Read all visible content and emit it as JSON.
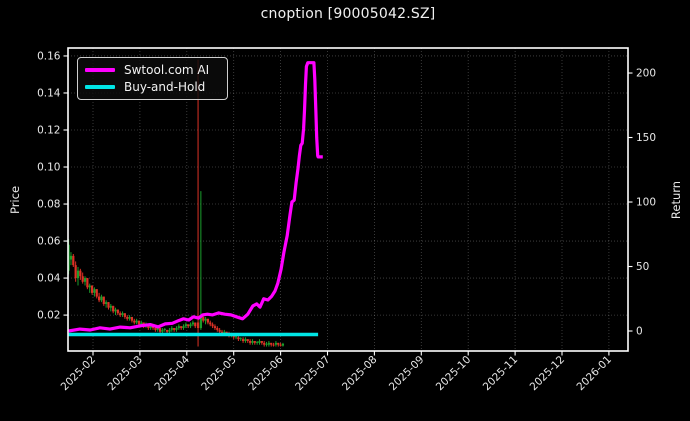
{
  "window": {
    "title": "cnoption [90005042.SZ]"
  },
  "legend": {
    "items": [
      {
        "label": "Swtool.com AI",
        "color": "#ff00ff"
      },
      {
        "label": "Buy-and-Hold",
        "color": "#00e5e5"
      }
    ]
  },
  "axes": {
    "left_label": "Price",
    "right_label": "Return"
  },
  "colors": {
    "background": "#000000",
    "text": "#e8e8e8",
    "spine": "#ffffff",
    "grid": "#ffffff",
    "candle_up": "#1a9e2c",
    "candle_down": "#dd3226",
    "strategy": "#ff00ff",
    "buy_hold": "#00e5e5"
  },
  "chart_data": {
    "type": "candlestick+line",
    "title": "cnoption [90005042.SZ]",
    "x_axis": {
      "unit": "months_since_2025-02",
      "ticks": [
        "2025-02",
        "2025-03",
        "2025-04",
        "2025-05",
        "2025-06",
        "2025-07",
        "2025-08",
        "2025-09",
        "2025-10",
        "2025-11",
        "2025-12",
        "2026-01"
      ]
    },
    "y_left": {
      "label": "Price",
      "range": [
        0.0006,
        0.1643
      ],
      "ticks": [
        0.02,
        0.04,
        0.06,
        0.08,
        0.1,
        0.12,
        0.14,
        0.16
      ]
    },
    "y_right": {
      "label": "Return",
      "range": [
        -15.5,
        219.4
      ],
      "ticks": [
        0,
        50,
        100,
        150,
        200
      ]
    },
    "grid": {
      "show": true,
      "style": "dotted"
    },
    "legend_position": "upper-left",
    "series": [
      {
        "name": "Swtool.com AI",
        "axis": "right",
        "color": "#ff00ff",
        "points": [
          [
            -0.52,
            0
          ],
          [
            -0.28,
            1.5
          ],
          [
            -0.06,
            0.8
          ],
          [
            0.15,
            2.5
          ],
          [
            0.36,
            1.5
          ],
          [
            0.58,
            3
          ],
          [
            0.79,
            2.5
          ],
          [
            1.01,
            4
          ],
          [
            1.22,
            5
          ],
          [
            1.39,
            3.2
          ],
          [
            1.54,
            5.5
          ],
          [
            1.69,
            6
          ],
          [
            1.82,
            8
          ],
          [
            1.93,
            9.5
          ],
          [
            2.04,
            8.5
          ],
          [
            2.14,
            11
          ],
          [
            2.25,
            10
          ],
          [
            2.34,
            12.5
          ],
          [
            2.44,
            13
          ],
          [
            2.55,
            12.5
          ],
          [
            2.68,
            14
          ],
          [
            2.81,
            13
          ],
          [
            2.94,
            12.5
          ],
          [
            3.06,
            11
          ],
          [
            3.19,
            9.5
          ],
          [
            3.3,
            13
          ],
          [
            3.41,
            19.5
          ],
          [
            3.49,
            21
          ],
          [
            3.56,
            18.5
          ],
          [
            3.64,
            25
          ],
          [
            3.73,
            24
          ],
          [
            3.81,
            27
          ],
          [
            3.88,
            31
          ],
          [
            3.94,
            37
          ],
          [
            4.01,
            48
          ],
          [
            4.07,
            61
          ],
          [
            4.14,
            74
          ],
          [
            4.2,
            90
          ],
          [
            4.24,
            100
          ],
          [
            4.29,
            101.5
          ],
          [
            4.33,
            115
          ],
          [
            4.37,
            126
          ],
          [
            4.4,
            136
          ],
          [
            4.43,
            144
          ],
          [
            4.46,
            145.5
          ],
          [
            4.49,
            157
          ],
          [
            4.51,
            171
          ],
          [
            4.53,
            191
          ],
          [
            4.55,
            205
          ],
          [
            4.58,
            208
          ],
          [
            4.71,
            208
          ],
          [
            4.73,
            195
          ],
          [
            4.75,
            172
          ],
          [
            4.77,
            150
          ],
          [
            4.79,
            136
          ],
          [
            4.8,
            135
          ],
          [
            4.9,
            135
          ]
        ]
      },
      {
        "name": "Buy-and-Hold",
        "axis": "right",
        "color": "#00e5e5",
        "points": [
          [
            -0.52,
            -2.7
          ],
          [
            4.8,
            -2.7
          ]
        ]
      }
    ],
    "candles": {
      "up_color": "#1a9e2c",
      "down_color": "#dd3226",
      "columns": [
        "month_offset",
        "open",
        "high",
        "low",
        "close"
      ],
      "ohlc": [
        [
          -0.52,
          0.044,
          0.061,
          0.042,
          0.058
        ],
        [
          -0.47,
          0.05,
          0.054,
          0.047,
          0.052
        ],
        [
          -0.42,
          0.052,
          0.053,
          0.046,
          0.047
        ],
        [
          -0.37,
          0.047,
          0.049,
          0.038,
          0.04
        ],
        [
          -0.32,
          0.04,
          0.046,
          0.036,
          0.044
        ],
        [
          -0.27,
          0.044,
          0.045,
          0.039,
          0.041
        ],
        [
          -0.22,
          0.041,
          0.043,
          0.037,
          0.038
        ],
        [
          -0.17,
          0.038,
          0.041,
          0.036,
          0.04
        ],
        [
          -0.12,
          0.04,
          0.04,
          0.034,
          0.035
        ],
        [
          -0.07,
          0.035,
          0.037,
          0.032,
          0.036
        ],
        [
          -0.02,
          0.036,
          0.036,
          0.031,
          0.032
        ],
        [
          0.03,
          0.032,
          0.035,
          0.03,
          0.034
        ],
        [
          0.08,
          0.034,
          0.034,
          0.029,
          0.03
        ],
        [
          0.13,
          0.03,
          0.032,
          0.027,
          0.028
        ],
        [
          0.18,
          0.028,
          0.031,
          0.027,
          0.03
        ],
        [
          0.23,
          0.03,
          0.03,
          0.025,
          0.026
        ],
        [
          0.28,
          0.026,
          0.028,
          0.024,
          0.027
        ],
        [
          0.33,
          0.027,
          0.027,
          0.023,
          0.024
        ],
        [
          0.38,
          0.024,
          0.026,
          0.022,
          0.025
        ],
        [
          0.43,
          0.025,
          0.025,
          0.021,
          0.022
        ],
        [
          0.48,
          0.022,
          0.024,
          0.02,
          0.023
        ],
        [
          0.53,
          0.023,
          0.023,
          0.02,
          0.021
        ],
        [
          0.58,
          0.021,
          0.022,
          0.019,
          0.02
        ],
        [
          0.63,
          0.02,
          0.022,
          0.019,
          0.021
        ],
        [
          0.68,
          0.021,
          0.021,
          0.018,
          0.019
        ],
        [
          0.73,
          0.019,
          0.02,
          0.017,
          0.018
        ],
        [
          0.78,
          0.018,
          0.02,
          0.017,
          0.019
        ],
        [
          0.83,
          0.019,
          0.019,
          0.016,
          0.017
        ],
        [
          0.88,
          0.017,
          0.018,
          0.015,
          0.016
        ],
        [
          0.93,
          0.016,
          0.018,
          0.015,
          0.017
        ],
        [
          0.98,
          0.017,
          0.017,
          0.014,
          0.015
        ],
        [
          1.03,
          0.015,
          0.017,
          0.014,
          0.016
        ],
        [
          1.08,
          0.016,
          0.016,
          0.013,
          0.014
        ],
        [
          1.13,
          0.014,
          0.016,
          0.013,
          0.015
        ],
        [
          1.18,
          0.015,
          0.015,
          0.012,
          0.013
        ],
        [
          1.23,
          0.013,
          0.015,
          0.012,
          0.014
        ],
        [
          1.28,
          0.014,
          0.014,
          0.012,
          0.013
        ],
        [
          1.33,
          0.013,
          0.014,
          0.011,
          0.012
        ],
        [
          1.38,
          0.012,
          0.014,
          0.011,
          0.013
        ],
        [
          1.43,
          0.013,
          0.013,
          0.01,
          0.011
        ],
        [
          1.48,
          0.011,
          0.013,
          0.01,
          0.012
        ],
        [
          1.53,
          0.012,
          0.013,
          0.011,
          0.0125
        ],
        [
          1.58,
          0.012,
          0.012,
          0.01,
          0.011
        ],
        [
          1.63,
          0.011,
          0.013,
          0.01,
          0.012
        ],
        [
          1.68,
          0.012,
          0.014,
          0.011,
          0.013
        ],
        [
          1.73,
          0.013,
          0.013,
          0.011,
          0.012
        ],
        [
          1.78,
          0.012,
          0.014,
          0.011,
          0.013
        ],
        [
          1.83,
          0.013,
          0.015,
          0.012,
          0.014
        ],
        [
          1.88,
          0.014,
          0.014,
          0.012,
          0.013
        ],
        [
          1.93,
          0.013,
          0.015,
          0.012,
          0.014
        ],
        [
          1.98,
          0.014,
          0.016,
          0.013,
          0.015
        ],
        [
          2.03,
          0.015,
          0.015,
          0.013,
          0.014
        ],
        [
          2.08,
          0.014,
          0.016,
          0.013,
          0.015
        ],
        [
          2.13,
          0.015,
          0.017,
          0.014,
          0.016
        ],
        [
          2.18,
          0.016,
          0.016,
          0.013,
          0.014
        ],
        [
          2.24,
          0.016,
          0.158,
          0.003,
          0.013
        ],
        [
          2.3,
          0.013,
          0.087,
          0.012,
          0.019
        ],
        [
          2.35,
          0.019,
          0.021,
          0.016,
          0.017
        ],
        [
          2.4,
          0.017,
          0.019,
          0.015,
          0.018
        ],
        [
          2.45,
          0.018,
          0.018,
          0.015,
          0.016
        ],
        [
          2.5,
          0.016,
          0.017,
          0.014,
          0.015
        ],
        [
          2.55,
          0.015,
          0.016,
          0.013,
          0.014
        ],
        [
          2.6,
          0.014,
          0.015,
          0.012,
          0.013
        ],
        [
          2.65,
          0.013,
          0.014,
          0.011,
          0.012
        ],
        [
          2.7,
          0.012,
          0.013,
          0.01,
          0.011
        ],
        [
          2.75,
          0.011,
          0.012,
          0.009,
          0.01
        ],
        [
          2.8,
          0.01,
          0.012,
          0.009,
          0.011
        ],
        [
          2.85,
          0.011,
          0.011,
          0.009,
          0.01
        ],
        [
          2.9,
          0.01,
          0.011,
          0.008,
          0.009
        ],
        [
          2.95,
          0.009,
          0.0105,
          0.008,
          0.0095
        ],
        [
          3.0,
          0.009,
          0.01,
          0.007,
          0.008
        ],
        [
          3.05,
          0.008,
          0.009,
          0.007,
          0.0085
        ],
        [
          3.1,
          0.008,
          0.009,
          0.006,
          0.007
        ],
        [
          3.15,
          0.007,
          0.008,
          0.006,
          0.0075
        ],
        [
          3.2,
          0.007,
          0.008,
          0.005,
          0.006
        ],
        [
          3.25,
          0.006,
          0.008,
          0.005,
          0.007
        ],
        [
          3.3,
          0.007,
          0.007,
          0.005,
          0.006
        ],
        [
          3.35,
          0.006,
          0.007,
          0.004,
          0.005
        ],
        [
          3.4,
          0.005,
          0.007,
          0.004,
          0.006
        ],
        [
          3.45,
          0.006,
          0.006,
          0.004,
          0.005
        ],
        [
          3.5,
          0.005,
          0.006,
          0.004,
          0.0055
        ],
        [
          3.55,
          0.005,
          0.007,
          0.004,
          0.006
        ],
        [
          3.6,
          0.006,
          0.006,
          0.004,
          0.005
        ],
        [
          3.65,
          0.005,
          0.006,
          0.003,
          0.004
        ],
        [
          3.7,
          0.004,
          0.0055,
          0.003,
          0.0045
        ],
        [
          3.75,
          0.004,
          0.006,
          0.003,
          0.005
        ],
        [
          3.8,
          0.005,
          0.005,
          0.003,
          0.004
        ],
        [
          3.85,
          0.004,
          0.005,
          0.003,
          0.0038
        ],
        [
          3.9,
          0.004,
          0.006,
          0.003,
          0.005
        ],
        [
          3.95,
          0.005,
          0.005,
          0.003,
          0.004
        ],
        [
          4.0,
          0.004,
          0.005,
          0.003,
          0.0035
        ],
        [
          4.05,
          0.0035,
          0.005,
          0.003,
          0.0045
        ]
      ]
    }
  }
}
